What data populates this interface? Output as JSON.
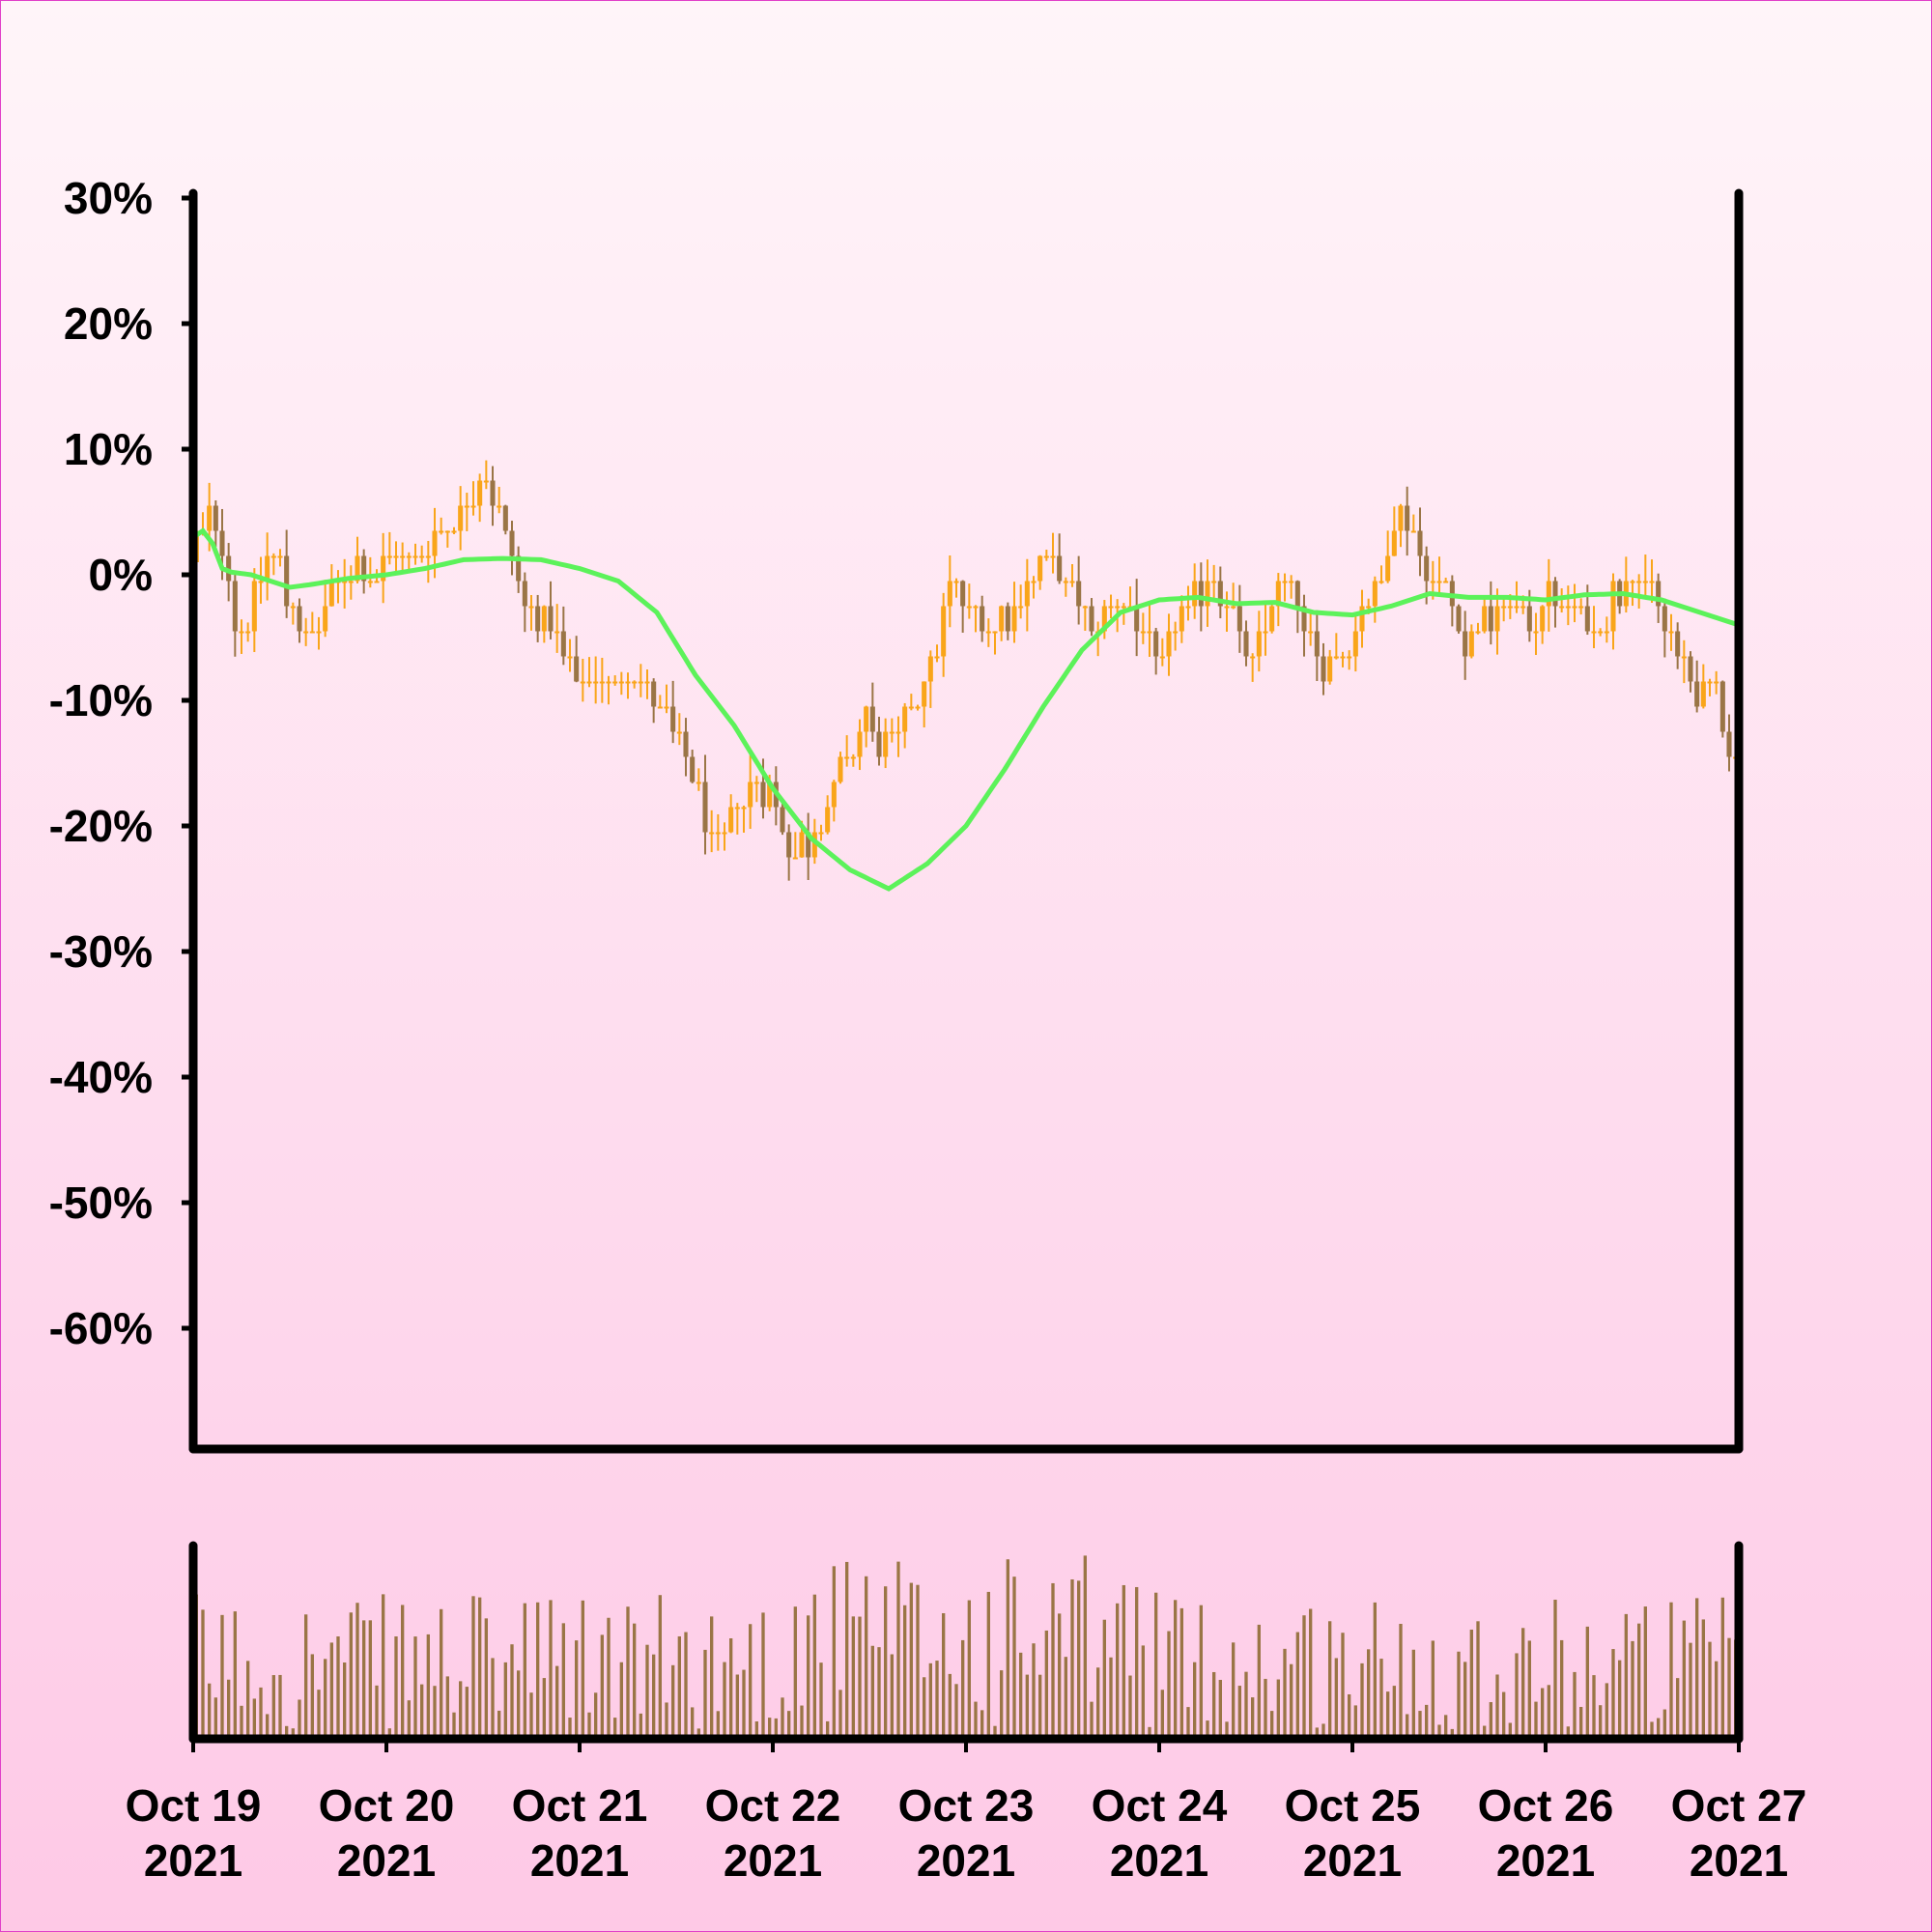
{
  "page": {
    "background_top": "#fff5f9",
    "background_bottom": "#fec9e6",
    "border_color": "#e040c8"
  },
  "colors": {
    "up": "#f9a51a",
    "down": "#9a7546",
    "volume": "#9a7546",
    "sma": "#5cf25a",
    "axis": "#000000"
  },
  "chart_data": {
    "type": "candlestick",
    "title": "",
    "xlabel": "",
    "ylabel": "",
    "start": "2021-10-19",
    "end": "2021-10-27",
    "xticks": [
      {
        "date": "2021-10-19",
        "month_day": "Oct 19",
        "year": "2021"
      },
      {
        "date": "2021-10-20",
        "month_day": "Oct 20",
        "year": "2021"
      },
      {
        "date": "2021-10-21",
        "month_day": "Oct 21",
        "year": "2021"
      },
      {
        "date": "2021-10-22",
        "month_day": "Oct 22",
        "year": "2021"
      },
      {
        "date": "2021-10-23",
        "month_day": "Oct 23",
        "year": "2021"
      },
      {
        "date": "2021-10-24",
        "month_day": "Oct 24",
        "year": "2021"
      },
      {
        "date": "2021-10-25",
        "month_day": "Oct 25",
        "year": "2021"
      },
      {
        "date": "2021-10-26",
        "month_day": "Oct 26",
        "year": "2021"
      },
      {
        "date": "2021-10-27",
        "month_day": "Oct 27",
        "year": "2021"
      }
    ],
    "yticks": [
      "30%",
      "20%",
      "10%",
      "0%",
      "-10%",
      "-20%",
      "-30%",
      "-40%",
      "-50%",
      "-60%"
    ],
    "ylim": [
      -69,
      30
    ],
    "grid": false,
    "price_path_percent": [
      [
        0,
        1
      ],
      [
        0.05,
        4
      ],
      [
        0.12,
        5
      ],
      [
        0.2,
        0
      ],
      [
        0.25,
        -4
      ],
      [
        0.3,
        -3
      ],
      [
        0.38,
        1
      ],
      [
        0.45,
        2
      ],
      [
        0.52,
        -2
      ],
      [
        0.62,
        -4.5
      ],
      [
        0.68,
        -3
      ],
      [
        0.75,
        0
      ],
      [
        0.85,
        1
      ],
      [
        1.0,
        1
      ],
      [
        1.1,
        2
      ],
      [
        1.25,
        3
      ],
      [
        1.4,
        5
      ],
      [
        1.5,
        8.5
      ],
      [
        1.58,
        7
      ],
      [
        1.65,
        3
      ],
      [
        1.72,
        -2
      ],
      [
        1.85,
        -3
      ],
      [
        2.0,
        -8
      ],
      [
        2.2,
        -8
      ],
      [
        2.35,
        -8
      ],
      [
        2.5,
        -12
      ],
      [
        2.6,
        -16
      ],
      [
        2.7,
        -21
      ],
      [
        2.78,
        -20
      ],
      [
        2.9,
        -16
      ],
      [
        3.0,
        -17
      ],
      [
        3.1,
        -21
      ],
      [
        3.2,
        -21
      ],
      [
        3.3,
        -18
      ],
      [
        3.4,
        -14
      ],
      [
        3.5,
        -11
      ],
      [
        3.6,
        -13
      ],
      [
        3.75,
        -10
      ],
      [
        3.85,
        -6
      ],
      [
        3.95,
        0
      ],
      [
        4.1,
        -4
      ],
      [
        4.25,
        -2
      ],
      [
        4.4,
        1
      ],
      [
        4.55,
        0
      ],
      [
        4.65,
        -4
      ],
      [
        4.75,
        -2
      ],
      [
        4.85,
        -2
      ],
      [
        4.95,
        -4
      ],
      [
        5.0,
        -7
      ],
      [
        5.1,
        -4
      ],
      [
        5.2,
        -1
      ],
      [
        5.3,
        0
      ],
      [
        5.4,
        -3
      ],
      [
        5.5,
        -6
      ],
      [
        5.6,
        -2
      ],
      [
        5.65,
        1
      ],
      [
        5.75,
        -3
      ],
      [
        5.85,
        -7
      ],
      [
        5.95,
        -6
      ],
      [
        6.05,
        -3
      ],
      [
        6.15,
        0
      ],
      [
        6.25,
        5
      ],
      [
        6.35,
        3
      ],
      [
        6.5,
        -1
      ],
      [
        6.6,
        -5
      ],
      [
        6.7,
        -3
      ],
      [
        6.8,
        -2
      ],
      [
        6.95,
        -3
      ],
      [
        7.05,
        -1
      ],
      [
        7.15,
        -3
      ],
      [
        7.25,
        -4
      ],
      [
        7.35,
        -2
      ],
      [
        7.45,
        1
      ],
      [
        7.6,
        -2
      ],
      [
        7.7,
        -6
      ],
      [
        7.8,
        -9
      ],
      [
        7.9,
        -8
      ],
      [
        7.95,
        -12
      ],
      [
        8.0,
        -14
      ]
    ],
    "sma_path_percent": [
      [
        0,
        3
      ],
      [
        0.05,
        3.5
      ],
      [
        0.1,
        2.5
      ],
      [
        0.15,
        0.5
      ],
      [
        0.2,
        0.2
      ],
      [
        0.3,
        0
      ],
      [
        0.4,
        -0.5
      ],
      [
        0.5,
        -1
      ],
      [
        0.6,
        -0.8
      ],
      [
        0.8,
        -0.3
      ],
      [
        1.0,
        0
      ],
      [
        1.2,
        0.5
      ],
      [
        1.4,
        1.2
      ],
      [
        1.6,
        1.3
      ],
      [
        1.8,
        1.2
      ],
      [
        2.0,
        0.5
      ],
      [
        2.2,
        -0.5
      ],
      [
        2.4,
        -3
      ],
      [
        2.6,
        -8
      ],
      [
        2.8,
        -12
      ],
      [
        3.0,
        -17
      ],
      [
        3.2,
        -21
      ],
      [
        3.4,
        -23.5
      ],
      [
        3.6,
        -25
      ],
      [
        3.8,
        -23
      ],
      [
        4.0,
        -20
      ],
      [
        4.2,
        -15.5
      ],
      [
        4.4,
        -10.5
      ],
      [
        4.6,
        -6
      ],
      [
        4.8,
        -3
      ],
      [
        5.0,
        -2
      ],
      [
        5.2,
        -1.8
      ],
      [
        5.4,
        -2.3
      ],
      [
        5.6,
        -2.2
      ],
      [
        5.8,
        -3
      ],
      [
        6.0,
        -3.2
      ],
      [
        6.2,
        -2.5
      ],
      [
        6.4,
        -1.5
      ],
      [
        6.6,
        -1.8
      ],
      [
        6.8,
        -1.8
      ],
      [
        7.0,
        -2
      ],
      [
        7.2,
        -1.6
      ],
      [
        7.4,
        -1.5
      ],
      [
        7.6,
        -2
      ],
      [
        7.8,
        -3
      ],
      [
        8.0,
        -4
      ]
    ]
  }
}
